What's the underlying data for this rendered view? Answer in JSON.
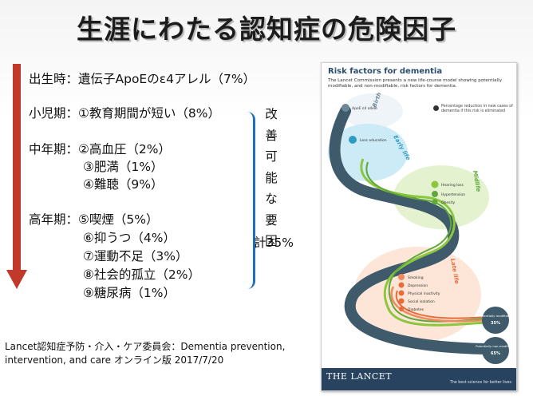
{
  "title": "生涯にわたる認知症の危険因子",
  "lines": {
    "birth": "出生時：遺伝子ApoEのε4アレル（7%）",
    "child": "小児期：①教育期間が短い（8%）",
    "mid1": "中年期：②高血圧（2%）",
    "mid2": "③肥満（1%）",
    "mid3": "④難聴（9%）",
    "late1": "高年期：⑤喫煙（5%）",
    "late2": "⑥抑うつ（4%）",
    "late3": "⑦運動不足（3%）",
    "late4": "⑧社会的孤立（2%）",
    "late5": "⑨糖尿病（1%）"
  },
  "modifiable_vertical": [
    "改",
    "善",
    "可",
    "能",
    "な",
    "要",
    "因"
  ],
  "total": "計35%",
  "citation_line1": "Lancet認知症予防・介入・ケア委員会：Dementia prevention,",
  "citation_line2": "intervention, and care オンライン版 2017/7/20",
  "figure": {
    "title": "Risk factors for dementia",
    "subtitle": "The Lancet Commission presents a new life-course model showing potentially modifiable, and non-modifiable, risk factors for dementia.",
    "legend": "Percentage reduction in new cases of dementia if this risk is eliminated",
    "stages": [
      "Birth",
      "Early life",
      "Midlife",
      "Late life"
    ],
    "factors": {
      "apoe": "ApoE ε4 allele",
      "education": "Less education",
      "hearing": "Hearing loss",
      "hypertension": "Hypertension",
      "obesity": "Obesity",
      "smoking": "Smoking",
      "depression": "Depression",
      "inactivity": "Physical inactivity",
      "isolation": "Social isolation",
      "diabetes": "Diabetes"
    },
    "modifiable_label": "Potentially modifiable",
    "modifiable_pct": "35%",
    "nonmod_label": "Potentially non-modifiable",
    "nonmod_pct": "65%",
    "journal": "THE LANCET",
    "tagline": "The best science for better lives"
  },
  "colors": {
    "arrow": "#c0392b",
    "bracket": "#1f6fbf",
    "navy": "#27435f",
    "early": "#7ec8e3",
    "mid": "#8cc63f",
    "late": "#f08a5d"
  }
}
